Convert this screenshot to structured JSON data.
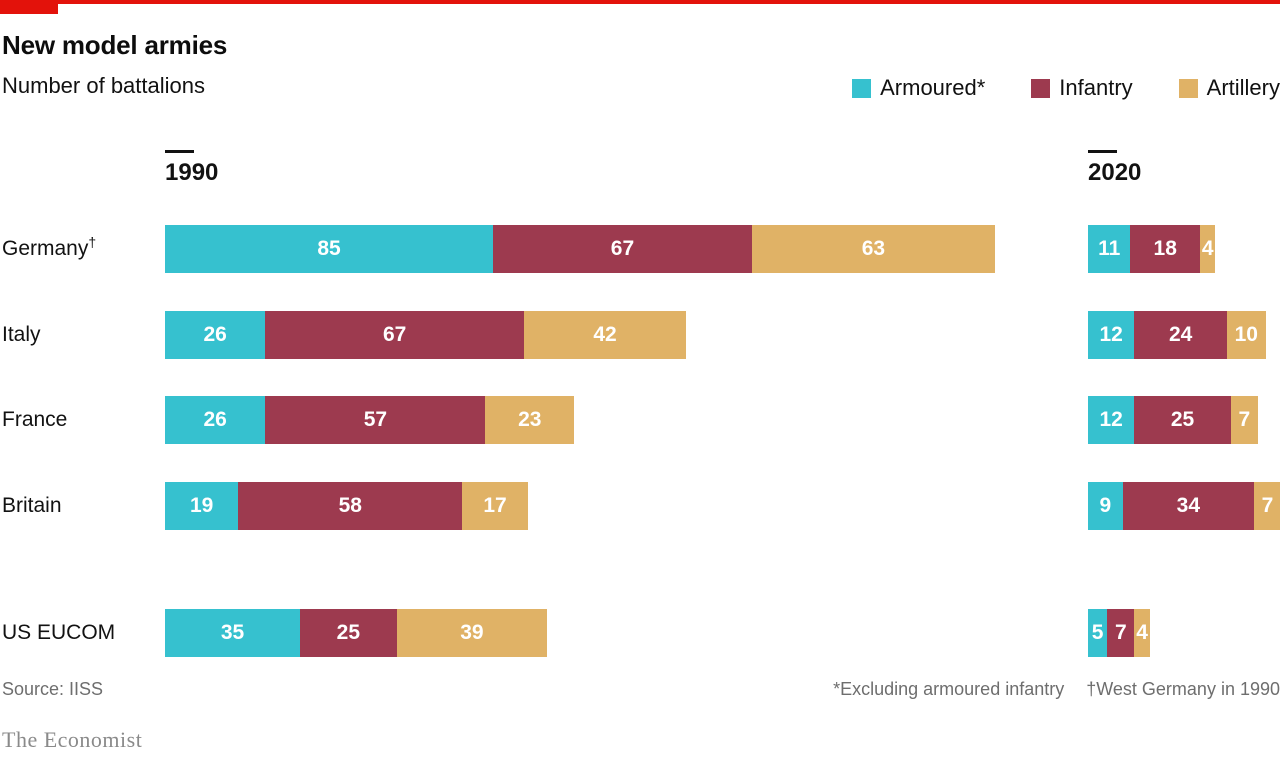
{
  "brand": {
    "accent_color": "#e3120b",
    "logo_text": "The Economist"
  },
  "header": {
    "title": "New model armies",
    "subtitle": "Number of battalions"
  },
  "legend": [
    {
      "label": "Armoured*",
      "color": "#36c1cf"
    },
    {
      "label": "Infantry",
      "color": "#9d3a4f"
    },
    {
      "label": "Artillery",
      "color": "#e0b266"
    }
  ],
  "chart_data": {
    "type": "bar",
    "orientation": "horizontal",
    "stacked": true,
    "unit": "battalions",
    "panels": [
      "1990",
      "2020"
    ],
    "series_names": [
      "Armoured*",
      "Infantry",
      "Artillery"
    ],
    "series_colors": [
      "#36c1cf",
      "#9d3a4f",
      "#e0b266"
    ],
    "value_label_color": "#ffffff",
    "rows": [
      {
        "label": "Germany",
        "label_sup": "†",
        "values_1990": [
          85,
          67,
          63
        ],
        "values_2020": [
          11,
          18,
          4
        ]
      },
      {
        "label": "Italy",
        "label_sup": "",
        "values_1990": [
          26,
          67,
          42
        ],
        "values_2020": [
          12,
          24,
          10
        ]
      },
      {
        "label": "France",
        "label_sup": "",
        "values_1990": [
          26,
          57,
          23
        ],
        "values_2020": [
          12,
          25,
          7
        ]
      },
      {
        "label": "Britain",
        "label_sup": "",
        "values_1990": [
          19,
          58,
          17
        ],
        "values_2020": [
          9,
          34,
          7
        ]
      },
      {
        "label": "US EUCOM",
        "label_sup": "",
        "values_1990": [
          35,
          25,
          39
        ],
        "values_2020": [
          5,
          7,
          4
        ]
      }
    ]
  },
  "footnotes": {
    "source": "Source: IISS",
    "note_armoured": "*Excluding armoured infantry",
    "note_germany": "†West Germany in 1990"
  }
}
